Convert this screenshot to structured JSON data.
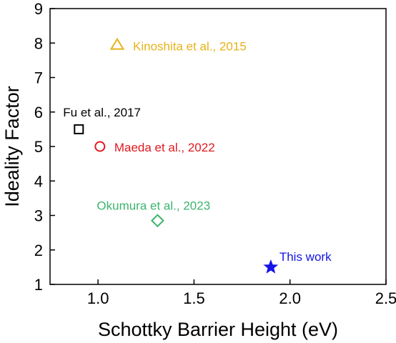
{
  "chart_data": {
    "type": "scatter",
    "title": "",
    "xlabel": "Schottky Barrier Height (eV)",
    "ylabel": "Ideality Factor",
    "xlim": [
      0.75,
      2.5
    ],
    "ylim": [
      1,
      9
    ],
    "xticks": [
      1.0,
      1.5,
      2.0,
      2.5
    ],
    "xtick_labels": [
      "1.0",
      "1.5",
      "2.0",
      "2.5"
    ],
    "yticks": [
      1,
      2,
      3,
      4,
      5,
      6,
      7,
      8,
      9
    ],
    "ytick_labels": [
      "1",
      "2",
      "3",
      "4",
      "5",
      "6",
      "7",
      "8",
      "9"
    ],
    "grid": false,
    "legend": "none",
    "points": [
      {
        "label": "Kinoshita et al., 2015",
        "x": 1.1,
        "y": 7.95,
        "marker": "triangle-open",
        "color": "#e8b21a"
      },
      {
        "label": "Fu et al., 2017",
        "x": 0.9,
        "y": 5.5,
        "marker": "square-open",
        "color": "#000000"
      },
      {
        "label": "Maeda et al., 2022",
        "x": 1.01,
        "y": 5.0,
        "marker": "circle-open",
        "color": "#e0191f"
      },
      {
        "label": "Okumura et al., 2023",
        "x": 1.31,
        "y": 2.85,
        "marker": "diamond-open",
        "color": "#3cb46e"
      },
      {
        "label": "This work",
        "x": 1.9,
        "y": 1.5,
        "marker": "star-filled",
        "color": "#1414e6"
      }
    ]
  }
}
